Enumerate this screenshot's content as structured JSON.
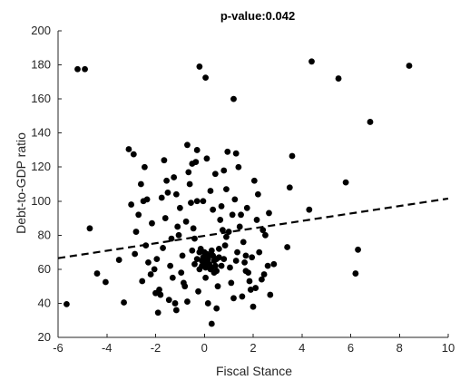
{
  "chart_data": {
    "type": "scatter",
    "title": "p-value:0.042",
    "xlabel": "Fiscal Stance",
    "ylabel": "Debt-to-GDP ratio",
    "xlim": [
      -6,
      10
    ],
    "ylim": [
      20,
      200
    ],
    "xticks": [
      -6,
      -4,
      -2,
      0,
      2,
      4,
      6,
      8,
      10
    ],
    "yticks": [
      20,
      40,
      60,
      80,
      100,
      120,
      140,
      160,
      180,
      200
    ],
    "xtick_labels": [
      "-6",
      "-4",
      "-2",
      "0",
      "2",
      "4",
      "6",
      "8",
      "10"
    ],
    "ytick_labels": [
      "20",
      "40",
      "60",
      "80",
      "100",
      "120",
      "140",
      "160",
      "180",
      "200"
    ],
    "grid": false,
    "colors": {
      "points": "#000000",
      "trend": "#000000",
      "axes": "#262626"
    },
    "trend_line": {
      "style": "dashed",
      "x": [
        -6,
        10
      ],
      "y": [
        66.5,
        101.5
      ]
    },
    "points": [
      [
        -5.2,
        177.5
      ],
      [
        -4.9,
        177.5
      ],
      [
        -0.2,
        179
      ],
      [
        0.05,
        172.5
      ],
      [
        1.2,
        160
      ],
      [
        4.4,
        182
      ],
      [
        5.5,
        172
      ],
      [
        6.8,
        146.5
      ],
      [
        8.4,
        179.5
      ],
      [
        -5.65,
        39.5
      ],
      [
        -4.7,
        84
      ],
      [
        -4.4,
        57.5
      ],
      [
        -4.05,
        52.5
      ],
      [
        -3.5,
        65.5
      ],
      [
        -3.3,
        40.5
      ],
      [
        -3.1,
        130.5
      ],
      [
        -2.9,
        127.5
      ],
      [
        -2.8,
        82
      ],
      [
        -2.6,
        110
      ],
      [
        -2.5,
        100
      ],
      [
        -2.4,
        74
      ],
      [
        -2.3,
        64
      ],
      [
        -2.2,
        57
      ],
      [
        -1.9,
        34.5
      ],
      [
        -1.8,
        45
      ],
      [
        -1.7,
        72.5
      ],
      [
        -1.6,
        90
      ],
      [
        -1.5,
        105
      ],
      [
        -1.4,
        62
      ],
      [
        -1.3,
        55
      ],
      [
        -1.2,
        40
      ],
      [
        -1.1,
        85
      ],
      [
        -1.0,
        96
      ],
      [
        -0.9,
        68
      ],
      [
        -0.8,
        50
      ],
      [
        -0.7,
        133
      ],
      [
        -0.6,
        110
      ],
      [
        -0.5,
        122
      ],
      [
        -0.4,
        78
      ],
      [
        -0.3,
        100
      ],
      [
        -0.2,
        60
      ],
      [
        -0.1,
        65
      ],
      [
        0.0,
        70
      ],
      [
        0.1,
        63
      ],
      [
        0.2,
        68
      ],
      [
        0.3,
        61
      ],
      [
        0.4,
        58
      ],
      [
        0.5,
        66
      ],
      [
        0.6,
        72
      ],
      [
        0.7,
        97
      ],
      [
        0.8,
        118
      ],
      [
        0.9,
        107
      ],
      [
        1.0,
        82
      ],
      [
        1.1,
        52
      ],
      [
        1.2,
        43
      ],
      [
        1.3,
        128
      ],
      [
        1.4,
        120
      ],
      [
        1.5,
        92
      ],
      [
        1.6,
        76
      ],
      [
        1.7,
        68
      ],
      [
        1.8,
        58
      ],
      [
        1.9,
        48
      ],
      [
        2.0,
        38
      ],
      [
        2.2,
        104
      ],
      [
        2.4,
        83
      ],
      [
        2.6,
        62
      ],
      [
        2.7,
        45
      ],
      [
        3.4,
        73
      ],
      [
        3.5,
        108
      ],
      [
        3.6,
        126.5
      ],
      [
        4.3,
        95
      ],
      [
        5.8,
        111
      ],
      [
        6.3,
        71.5
      ],
      [
        6.2,
        57.5
      ],
      [
        0.3,
        28
      ],
      [
        -2.05,
        60
      ],
      [
        -1.85,
        48
      ],
      [
        -1.55,
        112
      ],
      [
        -1.35,
        78
      ],
      [
        -1.15,
        104
      ],
      [
        -0.95,
        58
      ],
      [
        -0.75,
        88
      ],
      [
        -0.55,
        99
      ],
      [
        -0.35,
        123
      ],
      [
        -0.15,
        72
      ],
      [
        0.05,
        55
      ],
      [
        0.25,
        106
      ],
      [
        0.45,
        116
      ],
      [
        0.65,
        89
      ],
      [
        0.85,
        74
      ],
      [
        1.05,
        61
      ],
      [
        1.25,
        101
      ],
      [
        1.45,
        85
      ],
      [
        1.65,
        64
      ],
      [
        1.85,
        53
      ],
      [
        2.05,
        112
      ],
      [
        2.25,
        70
      ],
      [
        2.45,
        57
      ],
      [
        2.65,
        93
      ],
      [
        2.85,
        63
      ],
      [
        -2.7,
        92
      ],
      [
        -2.45,
        120
      ],
      [
        -2.15,
        87
      ],
      [
        -1.95,
        66
      ],
      [
        -1.75,
        102
      ],
      [
        -1.45,
        42
      ],
      [
        -1.25,
        114
      ],
      [
        -1.05,
        80
      ],
      [
        -0.85,
        52
      ],
      [
        -0.65,
        117
      ],
      [
        -0.45,
        84
      ],
      [
        -0.25,
        47
      ],
      [
        -0.05,
        100
      ],
      [
        0.15,
        40
      ],
      [
        0.35,
        95
      ],
      [
        0.55,
        50
      ],
      [
        0.75,
        83
      ],
      [
        0.95,
        129
      ],
      [
        1.15,
        92
      ],
      [
        1.35,
        70
      ],
      [
        1.55,
        44
      ],
      [
        1.75,
        96
      ],
      [
        1.95,
        67
      ],
      [
        2.15,
        89
      ],
      [
        2.35,
        54
      ],
      [
        -3.0,
        98
      ],
      [
        -2.85,
        69
      ],
      [
        -2.55,
        53
      ],
      [
        -2.35,
        101
      ],
      [
        -2.0,
        46
      ],
      [
        -1.65,
        124
      ],
      [
        -1.15,
        36
      ],
      [
        -0.7,
        41
      ],
      [
        -0.3,
        130
      ],
      [
        0.1,
        125
      ],
      [
        0.5,
        37
      ],
      [
        0.9,
        79
      ],
      [
        1.3,
        65
      ],
      [
        1.7,
        59
      ],
      [
        2.1,
        49
      ],
      [
        2.5,
        80
      ],
      [
        -0.1,
        62
      ],
      [
        -0.05,
        67
      ],
      [
        0.0,
        64
      ],
      [
        0.05,
        61
      ],
      [
        0.1,
        69
      ],
      [
        0.15,
        66
      ],
      [
        0.2,
        63
      ],
      [
        0.25,
        60
      ],
      [
        0.3,
        71
      ],
      [
        0.35,
        68
      ],
      [
        0.4,
        65
      ],
      [
        0.45,
        62
      ],
      [
        0.5,
        59
      ],
      [
        -0.2,
        70
      ],
      [
        -0.3,
        66
      ],
      [
        -0.4,
        63
      ],
      [
        -0.5,
        71
      ],
      [
        0.6,
        67
      ],
      [
        0.7,
        62
      ],
      [
        0.8,
        66
      ]
    ]
  }
}
